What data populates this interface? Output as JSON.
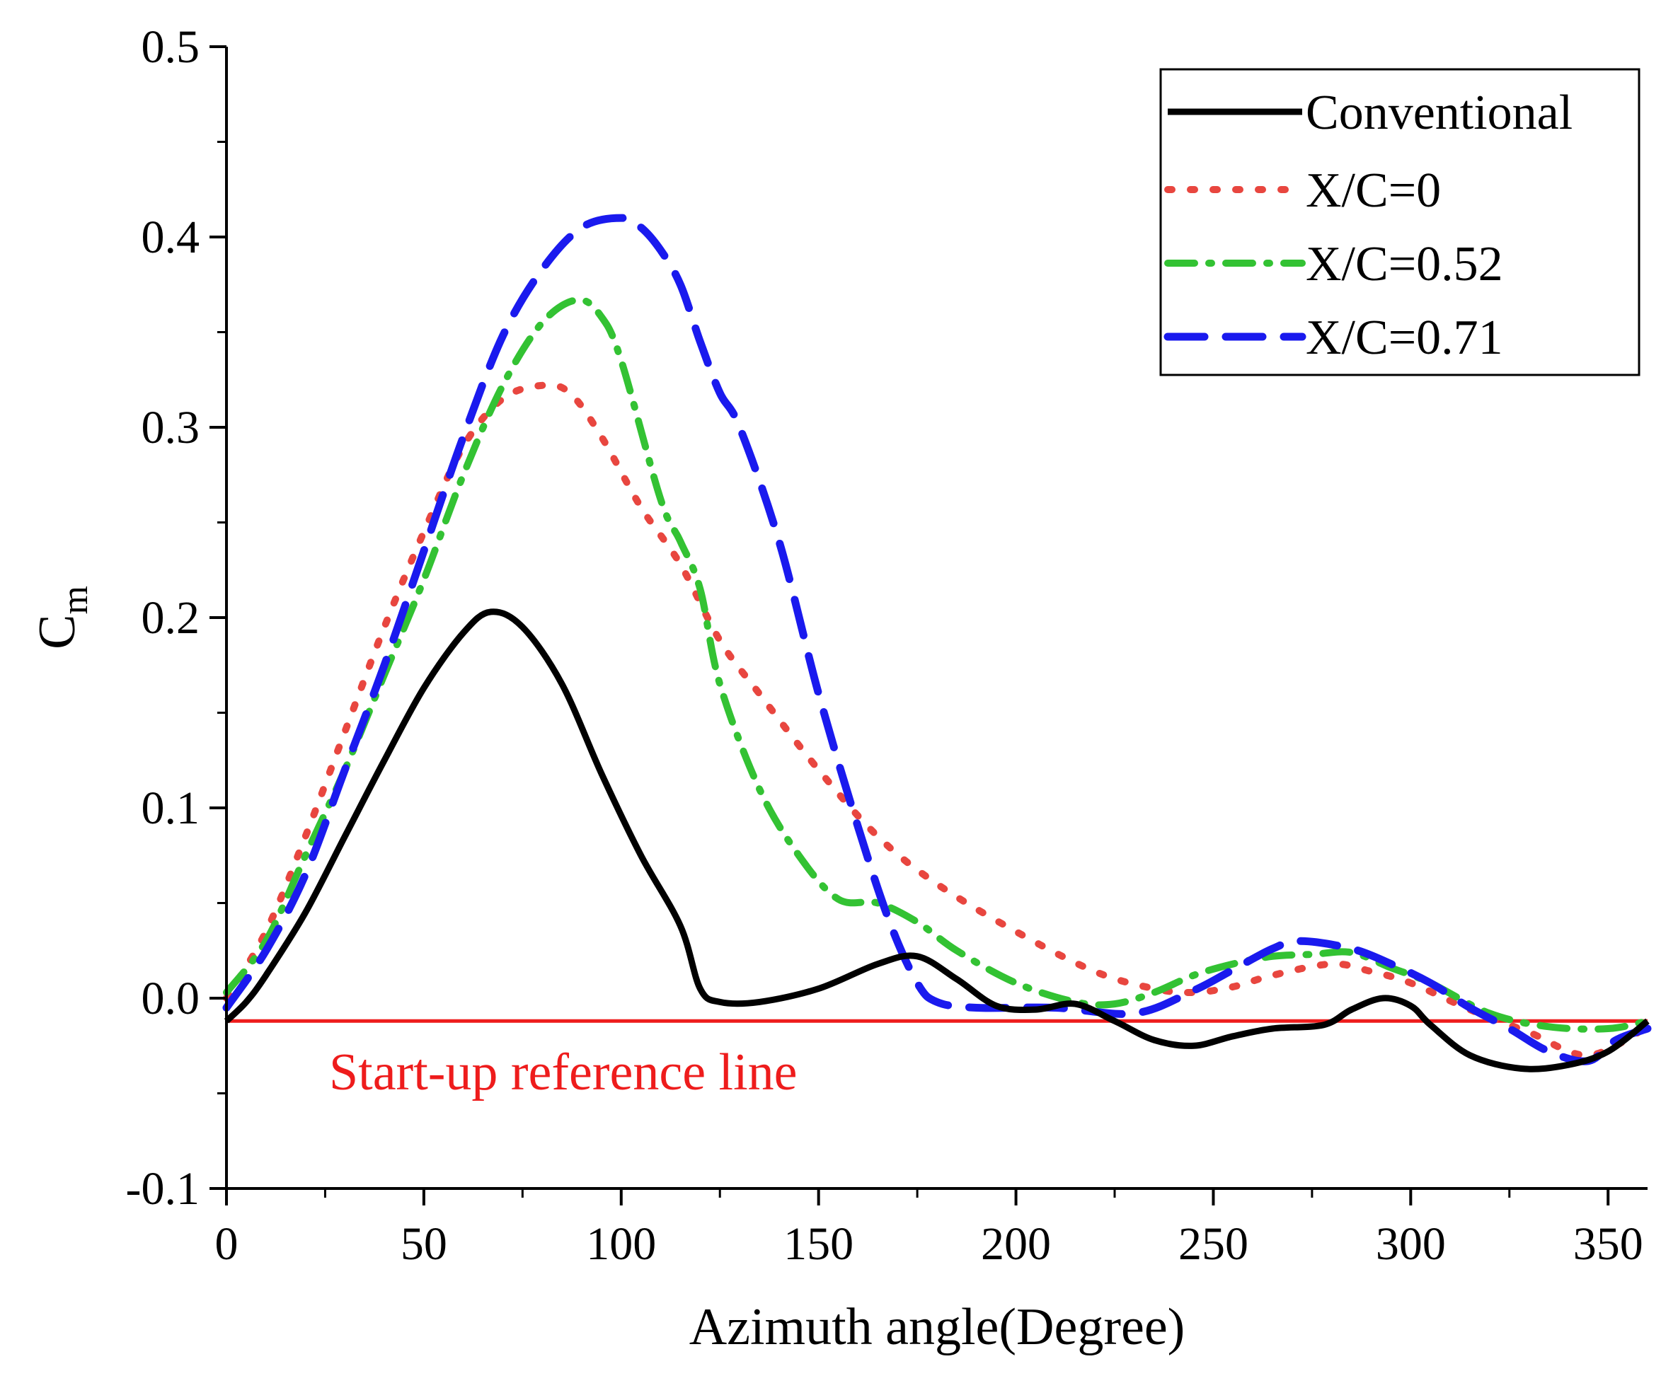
{
  "chart_data": {
    "type": "line",
    "title": "",
    "xlabel": "Azimuth angle(Degree)",
    "ylabel": "C",
    "ylabel_sub": "m",
    "xlim": [
      0,
      360
    ],
    "ylim": [
      -0.1,
      0.5
    ],
    "x_ticks": [
      0,
      50,
      100,
      150,
      200,
      250,
      300,
      350
    ],
    "x_tick_labels": [
      "0",
      "50",
      "100",
      "150",
      "200",
      "250",
      "300",
      "350"
    ],
    "y_ticks": [
      -0.1,
      0.0,
      0.1,
      0.2,
      0.3,
      0.4,
      0.5
    ],
    "y_tick_labels": [
      "-0.1",
      "0.0",
      "0.1",
      "0.2",
      "0.3",
      "0.4",
      "0.5"
    ],
    "grid": false,
    "legend_position": "top-right",
    "series": [
      {
        "name": "Conventional",
        "color": "#000000",
        "style": "solid",
        "x": [
          0,
          5,
          10,
          20,
          30,
          40,
          50,
          60,
          67,
          75,
          85,
          95,
          105,
          115,
          120,
          125,
          135,
          150,
          165,
          175,
          185,
          195,
          205,
          215,
          225,
          235,
          245,
          255,
          265,
          278,
          285,
          293,
          300,
          305,
          315,
          328,
          340,
          350,
          360
        ],
        "y": [
          -0.012,
          -0.002,
          0.012,
          0.045,
          0.085,
          0.125,
          0.163,
          0.192,
          0.203,
          0.195,
          0.165,
          0.118,
          0.075,
          0.038,
          0.005,
          -0.002,
          -0.002,
          0.005,
          0.018,
          0.022,
          0.01,
          -0.004,
          -0.006,
          -0.003,
          -0.012,
          -0.022,
          -0.025,
          -0.02,
          -0.016,
          -0.014,
          -0.006,
          0.0,
          -0.004,
          -0.014,
          -0.03,
          -0.037,
          -0.035,
          -0.028,
          -0.012
        ]
      },
      {
        "name": "X/C=0",
        "color": "#e8463f",
        "style": "dotted",
        "x": [
          0,
          10,
          20,
          30,
          40,
          50,
          60,
          70,
          80,
          87,
          95,
          105,
          115,
          125,
          135,
          150,
          165,
          180,
          200,
          220,
          235,
          245,
          255,
          265,
          280,
          290,
          300,
          315,
          330,
          345,
          360
        ],
        "y": [
          0.0,
          0.035,
          0.085,
          0.14,
          0.195,
          0.245,
          0.29,
          0.315,
          0.322,
          0.318,
          0.295,
          0.258,
          0.228,
          0.188,
          0.16,
          0.12,
          0.085,
          0.06,
          0.035,
          0.014,
          0.005,
          0.003,
          0.006,
          0.012,
          0.018,
          0.014,
          0.008,
          -0.006,
          -0.018,
          -0.03,
          -0.015
        ]
      },
      {
        "name": "X/C=0.52",
        "color": "#33c233",
        "style": "dash-dot",
        "x": [
          0,
          10,
          20,
          30,
          40,
          50,
          60,
          70,
          80,
          89,
          95,
          100,
          110,
          115,
          120,
          125,
          135,
          145,
          155,
          165,
          175,
          185,
          200,
          215,
          225,
          235,
          245,
          255,
          265,
          275,
          285,
          295,
          305,
          320,
          335,
          350,
          360
        ],
        "y": [
          0.003,
          0.03,
          0.075,
          0.12,
          0.17,
          0.22,
          0.275,
          0.322,
          0.355,
          0.367,
          0.358,
          0.335,
          0.262,
          0.24,
          0.215,
          0.165,
          0.11,
          0.075,
          0.052,
          0.05,
          0.04,
          0.025,
          0.008,
          -0.002,
          -0.003,
          0.003,
          0.012,
          0.018,
          0.022,
          0.023,
          0.024,
          0.016,
          0.008,
          -0.008,
          -0.015,
          -0.016,
          -0.012
        ]
      },
      {
        "name": "X/C=0.71",
        "color": "#1a1aee",
        "style": "dashed",
        "x": [
          0,
          10,
          20,
          30,
          40,
          50,
          60,
          70,
          80,
          90,
          100,
          105,
          110,
          115,
          120,
          125,
          130,
          140,
          150,
          160,
          168,
          175,
          180,
          190,
          210,
          230,
          245,
          255,
          265,
          272,
          285,
          295,
          305,
          315,
          325,
          335,
          345,
          352,
          360
        ],
        "y": [
          -0.005,
          0.025,
          0.065,
          0.12,
          0.175,
          0.235,
          0.295,
          0.348,
          0.383,
          0.405,
          0.41,
          0.405,
          0.393,
          0.375,
          0.345,
          0.318,
          0.3,
          0.24,
          0.16,
          0.09,
          0.04,
          0.008,
          -0.002,
          -0.005,
          -0.005,
          -0.008,
          0.004,
          0.015,
          0.026,
          0.03,
          0.026,
          0.018,
          0.008,
          -0.005,
          -0.016,
          -0.028,
          -0.033,
          -0.022,
          -0.016
        ]
      }
    ],
    "reference_line": {
      "label": "Start-up reference line",
      "y": -0.012,
      "color": "#ee1c1c"
    }
  }
}
